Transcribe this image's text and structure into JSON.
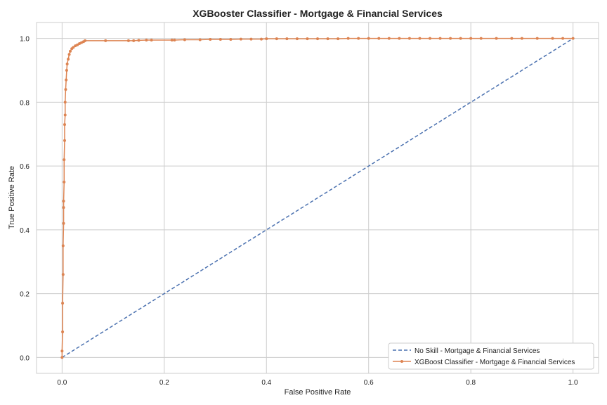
{
  "chart_data": {
    "type": "line",
    "title": "XGBooster Classifier - Mortgage & Financial Services",
    "xlabel": "False Positive Rate",
    "ylabel": "True Positive Rate",
    "xlim": [
      -0.05,
      1.05
    ],
    "ylim": [
      -0.05,
      1.05
    ],
    "xticks": [
      "0.0",
      "0.2",
      "0.4",
      "0.6",
      "0.8",
      "1.0"
    ],
    "yticks": [
      "0.0",
      "0.2",
      "0.4",
      "0.6",
      "0.8",
      "1.0"
    ],
    "grid": true,
    "legend_position": "lower-right",
    "series": [
      {
        "name": "No Skill - Mortgage & Financial Services",
        "style": "dashed",
        "color": "#4c72b0",
        "x": [
          0.0,
          1.0
        ],
        "y": [
          0.0,
          1.0
        ]
      },
      {
        "name": "XGBoost Classifier - Mortgage & Financial Services",
        "style": "solid-dot",
        "color": "#dd8452",
        "x": [
          0.0,
          0.0,
          0.001,
          0.001,
          0.002,
          0.002,
          0.003,
          0.003,
          0.003,
          0.004,
          0.004,
          0.005,
          0.005,
          0.006,
          0.006,
          0.007,
          0.008,
          0.009,
          0.01,
          0.012,
          0.014,
          0.016,
          0.019,
          0.022,
          0.026,
          0.03,
          0.034,
          0.038,
          0.042,
          0.045,
          0.085,
          0.13,
          0.14,
          0.15,
          0.165,
          0.175,
          0.215,
          0.22,
          0.24,
          0.27,
          0.29,
          0.31,
          0.33,
          0.35,
          0.37,
          0.39,
          0.4,
          0.42,
          0.44,
          0.46,
          0.48,
          0.5,
          0.52,
          0.54,
          0.56,
          0.58,
          0.6,
          0.62,
          0.64,
          0.66,
          0.68,
          0.7,
          0.72,
          0.74,
          0.76,
          0.78,
          0.8,
          0.82,
          0.85,
          0.88,
          0.9,
          0.93,
          0.96,
          0.98,
          1.0
        ],
        "y": [
          0.0,
          0.02,
          0.08,
          0.17,
          0.26,
          0.35,
          0.42,
          0.47,
          0.49,
          0.55,
          0.62,
          0.68,
          0.73,
          0.76,
          0.8,
          0.84,
          0.87,
          0.9,
          0.92,
          0.935,
          0.95,
          0.96,
          0.968,
          0.972,
          0.977,
          0.98,
          0.984,
          0.987,
          0.99,
          0.993,
          0.993,
          0.993,
          0.993,
          0.994,
          0.995,
          0.995,
          0.995,
          0.995,
          0.996,
          0.996,
          0.997,
          0.997,
          0.997,
          0.998,
          0.998,
          0.998,
          0.999,
          0.999,
          0.999,
          0.999,
          0.999,
          0.999,
          0.999,
          0.999,
          1.0,
          1.0,
          1.0,
          1.0,
          1.0,
          1.0,
          1.0,
          1.0,
          1.0,
          1.0,
          1.0,
          1.0,
          1.0,
          1.0,
          1.0,
          1.0,
          1.0,
          1.0,
          1.0,
          1.0,
          1.0
        ]
      }
    ]
  }
}
